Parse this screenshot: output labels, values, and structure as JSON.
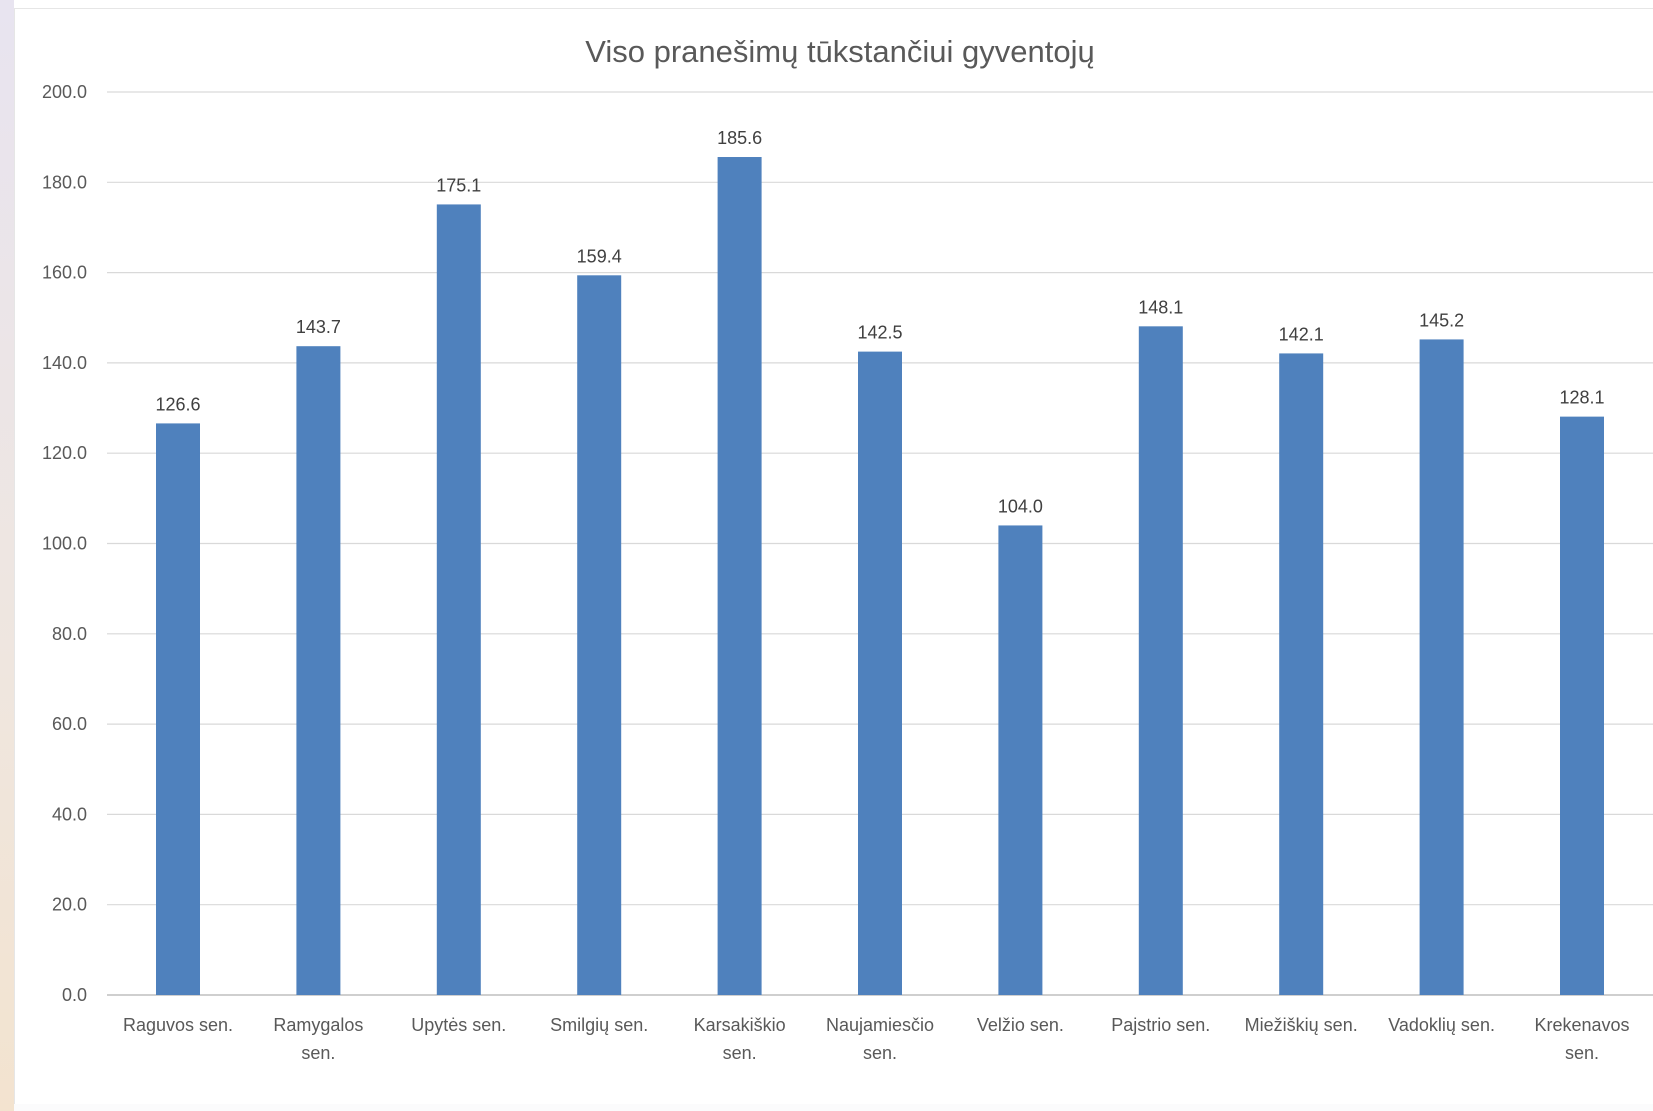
{
  "chart_data": {
    "type": "bar",
    "title": "Viso pranešimų tūkstančiui gyventojų",
    "xlabel": "",
    "ylabel": "",
    "categories": [
      [
        "Raguvos sen."
      ],
      [
        "Ramygalos",
        "sen."
      ],
      [
        "Upytės sen."
      ],
      [
        "Smilgių sen."
      ],
      [
        "Karsakiškio",
        "sen."
      ],
      [
        "Naujamiesčio",
        "sen."
      ],
      [
        "Velžio sen."
      ],
      [
        "Pajstrio sen."
      ],
      [
        "Miežiškių sen."
      ],
      [
        "Vadoklių sen."
      ],
      [
        "Krekenavos",
        "sen."
      ]
    ],
    "values": [
      126.6,
      143.7,
      175.1,
      159.4,
      185.6,
      142.5,
      104.0,
      148.1,
      142.1,
      145.2,
      128.1
    ],
    "data_labels": [
      "126.6",
      "143.7",
      "175.1",
      "159.4",
      "185.6",
      "142.5",
      "104.0",
      "148.1",
      "142.1",
      "145.2",
      "128.1"
    ],
    "ylim": [
      0,
      200
    ],
    "yticks": [
      0,
      20,
      40,
      60,
      80,
      100,
      120,
      140,
      160,
      180,
      200
    ],
    "ytick_labels": [
      "0.0",
      "20.0",
      "40.0",
      "60.0",
      "80.0",
      "100.0",
      "120.0",
      "140.0",
      "160.0",
      "180.0",
      "200.0"
    ],
    "grid": true,
    "legend": "none",
    "colors": {
      "bar": "#4f81bd",
      "grid": "#d9d9d9",
      "text": "#595959"
    }
  }
}
